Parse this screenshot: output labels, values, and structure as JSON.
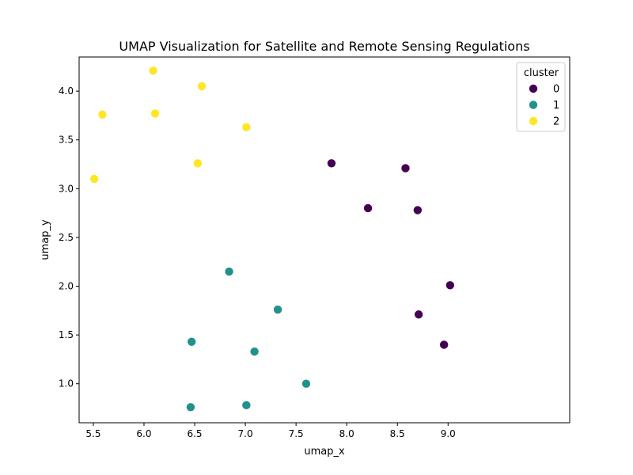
{
  "chart_data": {
    "type": "scatter",
    "title": "UMAP Visualization for Satellite and Remote Sensing Regulations",
    "xlabel": "umap_x",
    "ylabel": "umap_y",
    "xlim": [
      5.36,
      10.2
    ],
    "ylim": [
      0.6,
      4.35
    ],
    "x_ticks": [
      "5.5",
      "6.0",
      "6.5",
      "7.0",
      "7.5",
      "8.0",
      "8.5",
      "9.0"
    ],
    "y_ticks": [
      "1.0",
      "1.5",
      "2.0",
      "2.5",
      "3.0",
      "3.5",
      "4.0"
    ],
    "grid": false,
    "legend": {
      "title": "cluster",
      "placement": "top-right",
      "entries": [
        {
          "label": "0",
          "color": "#440154"
        },
        {
          "label": "1",
          "color": "#21918c"
        },
        {
          "label": "2",
          "color": "#fde725"
        }
      ]
    },
    "series": [
      {
        "name": "0",
        "color": "#440154",
        "points": [
          {
            "x": 7.85,
            "y": 3.26
          },
          {
            "x": 8.58,
            "y": 3.21
          },
          {
            "x": 8.21,
            "y": 2.8
          },
          {
            "x": 8.7,
            "y": 2.78
          },
          {
            "x": 9.02,
            "y": 2.01
          },
          {
            "x": 8.71,
            "y": 1.71
          },
          {
            "x": 8.96,
            "y": 1.4
          }
        ]
      },
      {
        "name": "1",
        "color": "#21918c",
        "points": [
          {
            "x": 6.84,
            "y": 2.15
          },
          {
            "x": 7.32,
            "y": 1.76
          },
          {
            "x": 6.47,
            "y": 1.43
          },
          {
            "x": 7.09,
            "y": 1.33
          },
          {
            "x": 7.6,
            "y": 1.0
          },
          {
            "x": 6.46,
            "y": 0.76
          },
          {
            "x": 7.01,
            "y": 0.78
          }
        ]
      },
      {
        "name": "2",
        "color": "#fde725",
        "points": [
          {
            "x": 6.09,
            "y": 4.21
          },
          {
            "x": 6.57,
            "y": 4.05
          },
          {
            "x": 5.59,
            "y": 3.76
          },
          {
            "x": 6.11,
            "y": 3.77
          },
          {
            "x": 7.01,
            "y": 3.63
          },
          {
            "x": 6.53,
            "y": 3.26
          },
          {
            "x": 5.51,
            "y": 3.1
          }
        ]
      }
    ]
  }
}
